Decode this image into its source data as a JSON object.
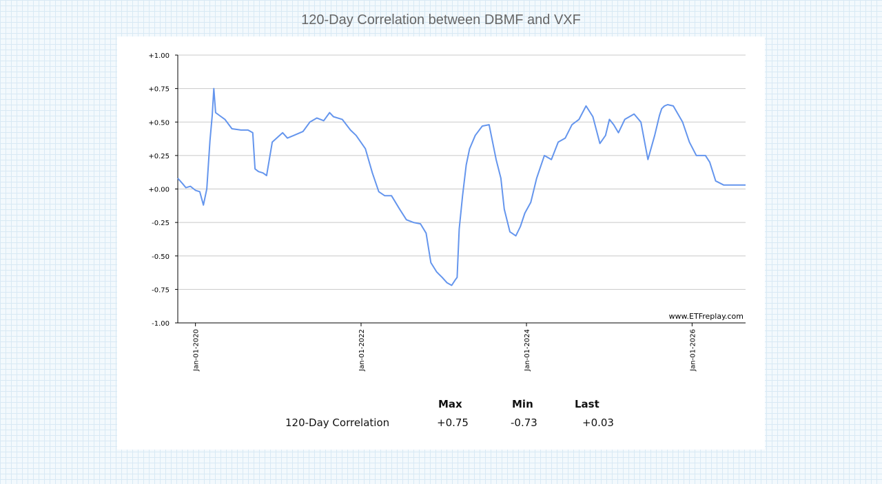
{
  "title": "120-Day Correlation between DBMF and VXF",
  "credit": "www.ETFreplay.com",
  "colors": {
    "line": "#6495ed",
    "grid": "#c8c8c8",
    "axis": "#000000"
  },
  "stats": {
    "headers": [
      "Max",
      "Min",
      "Last"
    ],
    "row_label": "120-Day Correlation",
    "values": [
      "+0.75",
      "-0.73",
      "+0.03"
    ]
  },
  "chart_data": {
    "type": "line",
    "title": "120-Day Correlation between DBMF and VXF",
    "xlabel": "",
    "ylabel": "",
    "ylim": [
      -1.0,
      1.0
    ],
    "xlim": [
      "2019-10-15",
      "2026-08-25"
    ],
    "y_ticks": [
      "+1.00",
      "+0.75",
      "+0.50",
      "+0.25",
      "+0.00",
      "-0.25",
      "-0.50",
      "-0.75",
      "-1.00"
    ],
    "x_ticks": [
      "Jan-01-2020",
      "Jan-01-2022",
      "Jan-01-2024",
      "Jan-01-2026"
    ],
    "grid": true,
    "series": [
      {
        "name": "120-Day Correlation",
        "x": [
          "2019-10-15",
          "2019-11-05",
          "2019-11-20",
          "2019-12-10",
          "2020-01-01",
          "2020-01-20",
          "2020-02-05",
          "2020-02-20",
          "2020-03-05",
          "2020-03-15",
          "2020-03-22",
          "2020-03-30",
          "2020-04-15",
          "2020-05-10",
          "2020-06-10",
          "2020-07-20",
          "2020-08-20",
          "2020-09-10",
          "2020-09-20",
          "2020-10-05",
          "2020-10-25",
          "2020-11-10",
          "2020-12-05",
          "2021-01-20",
          "2021-02-10",
          "2021-03-10",
          "2021-04-20",
          "2021-05-20",
          "2021-06-20",
          "2021-07-20",
          "2021-08-15",
          "2021-09-01",
          "2021-10-10",
          "2021-11-15",
          "2021-12-10",
          "2022-01-20",
          "2022-02-20",
          "2022-03-20",
          "2022-04-15",
          "2022-05-15",
          "2022-06-20",
          "2022-07-20",
          "2022-08-20",
          "2022-09-20",
          "2022-10-15",
          "2022-11-05",
          "2022-12-01",
          "2022-12-25",
          "2023-01-15",
          "2023-02-05",
          "2023-02-20",
          "2023-03-01",
          "2023-03-10",
          "2023-03-25",
          "2023-04-10",
          "2023-04-25",
          "2023-05-20",
          "2023-06-20",
          "2023-07-20",
          "2023-08-20",
          "2023-09-10",
          "2023-09-25",
          "2023-10-20",
          "2023-11-15",
          "2023-12-05",
          "2023-12-25",
          "2024-01-20",
          "2024-02-15",
          "2024-03-20",
          "2024-04-20",
          "2024-05-20",
          "2024-06-20",
          "2024-07-20",
          "2024-08-20",
          "2024-09-20",
          "2024-10-20",
          "2024-11-20",
          "2024-12-15",
          "2025-01-01",
          "2025-01-20",
          "2025-02-10",
          "2025-03-10",
          "2025-04-20",
          "2025-05-20",
          "2025-06-20",
          "2025-07-20",
          "2025-08-10",
          "2025-08-20",
          "2025-09-01",
          "2025-09-15",
          "2025-10-10",
          "2025-11-20",
          "2025-12-20",
          "2026-01-20",
          "2026-02-10",
          "2026-03-01",
          "2026-03-20",
          "2026-04-15",
          "2026-05-20",
          "2026-06-20",
          "2026-07-10",
          "2026-07-25",
          "2026-08-10",
          "2026-08-25"
        ],
        "values": [
          0.08,
          0.04,
          0.01,
          0.02,
          -0.01,
          -0.02,
          -0.12,
          0.0,
          0.36,
          0.55,
          0.75,
          0.57,
          0.55,
          0.52,
          0.45,
          0.44,
          0.44,
          0.42,
          0.15,
          0.13,
          0.12,
          0.1,
          0.35,
          0.42,
          0.38,
          0.4,
          0.43,
          0.5,
          0.53,
          0.51,
          0.57,
          0.54,
          0.52,
          0.44,
          0.4,
          0.3,
          0.12,
          -0.02,
          -0.05,
          -0.05,
          -0.15,
          -0.23,
          -0.25,
          -0.26,
          -0.33,
          -0.55,
          -0.62,
          -0.66,
          -0.7,
          -0.72,
          -0.68,
          -0.66,
          -0.3,
          -0.05,
          0.18,
          0.3,
          0.4,
          0.47,
          0.48,
          0.22,
          0.08,
          -0.15,
          -0.32,
          -0.35,
          -0.28,
          -0.18,
          -0.1,
          0.08,
          0.25,
          0.22,
          0.35,
          0.38,
          0.48,
          0.52,
          0.62,
          0.54,
          0.34,
          0.4,
          0.52,
          0.48,
          0.42,
          0.52,
          0.56,
          0.5,
          0.22,
          0.4,
          0.55,
          0.6,
          0.62,
          0.63,
          0.62,
          0.5,
          0.35,
          0.25,
          0.25,
          0.25,
          0.2,
          0.06,
          0.03,
          0.03,
          0.03,
          0.03,
          0.03,
          0.03
        ]
      }
    ]
  }
}
